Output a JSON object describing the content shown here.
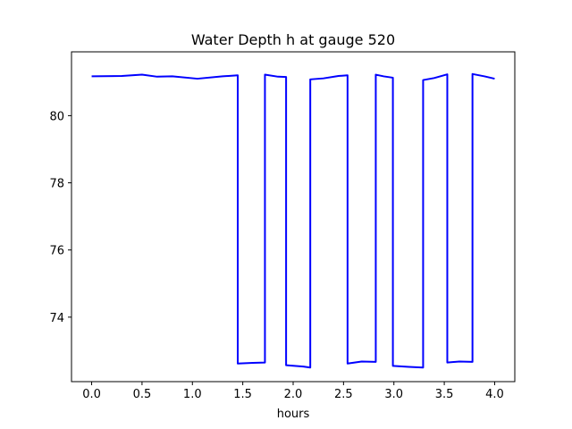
{
  "chart_data": {
    "type": "line",
    "title": "Water Depth h at gauge 520",
    "xlabel": "hours",
    "ylabel": "",
    "xlim": [
      -0.2,
      4.2
    ],
    "ylim": [
      72.08,
      81.9
    ],
    "xticks": [
      0.0,
      0.5,
      1.0,
      1.5,
      2.0,
      2.5,
      3.0,
      3.5,
      4.0
    ],
    "xtick_labels": [
      "0.0",
      "0.5",
      "1.0",
      "1.5",
      "2.0",
      "2.5",
      "3.0",
      "3.5",
      "4.0"
    ],
    "yticks": [
      74,
      76,
      78,
      80
    ],
    "ytick_labels": [
      "74",
      "76",
      "78",
      "80"
    ],
    "grid": false,
    "series": [
      {
        "color": "#0000ff",
        "x": [
          0.0,
          0.3,
          0.5,
          0.65,
          0.8,
          1.05,
          1.3,
          1.45,
          1.45,
          1.6,
          1.72,
          1.72,
          1.85,
          1.93,
          1.93,
          2.1,
          2.17,
          2.17,
          2.3,
          2.45,
          2.54,
          2.54,
          2.68,
          2.82,
          2.82,
          2.9,
          2.99,
          2.99,
          3.15,
          3.29,
          3.29,
          3.4,
          3.53,
          3.53,
          3.65,
          3.78,
          3.78,
          3.9,
          4.0
        ],
        "y": [
          81.17,
          81.18,
          81.22,
          81.16,
          81.17,
          81.1,
          81.17,
          81.2,
          72.62,
          72.64,
          72.65,
          81.22,
          81.16,
          81.15,
          72.57,
          72.53,
          72.5,
          81.08,
          81.11,
          81.18,
          81.2,
          72.62,
          72.68,
          72.67,
          81.22,
          81.17,
          81.13,
          72.55,
          72.52,
          72.5,
          81.06,
          81.12,
          81.23,
          72.65,
          72.68,
          72.67,
          81.24,
          81.17,
          81.1
        ]
      }
    ]
  }
}
